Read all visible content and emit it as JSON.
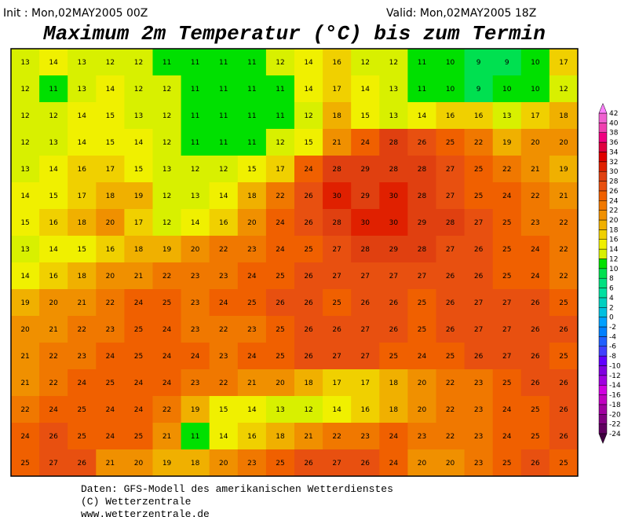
{
  "header": {
    "init": "Init : Mon,02MAY2005 00Z",
    "valid": "Valid: Mon,02MAY2005 18Z",
    "title": "Maximum 2m Temperatur (°C) bis zum Termin"
  },
  "map": {
    "grid": [
      [
        13,
        14,
        13,
        12,
        12,
        11,
        11,
        11,
        11,
        12,
        14,
        16,
        12,
        12,
        11,
        10,
        9,
        9,
        10,
        17
      ],
      [
        12,
        11,
        13,
        14,
        12,
        12,
        11,
        11,
        11,
        11,
        14,
        17,
        14,
        13,
        11,
        10,
        9,
        10,
        10,
        12
      ],
      [
        12,
        12,
        14,
        15,
        13,
        12,
        11,
        11,
        11,
        11,
        12,
        18,
        15,
        13,
        14,
        16,
        16,
        13,
        17,
        18
      ],
      [
        12,
        13,
        14,
        15,
        14,
        12,
        11,
        11,
        11,
        12,
        15,
        21,
        24,
        28,
        26,
        25,
        22,
        19,
        20,
        20
      ],
      [
        13,
        14,
        16,
        17,
        15,
        13,
        12,
        12,
        15,
        17,
        24,
        28,
        29,
        28,
        28,
        27,
        25,
        22,
        21,
        19
      ],
      [
        14,
        15,
        17,
        18,
        19,
        12,
        13,
        14,
        18,
        22,
        26,
        30,
        29,
        30,
        28,
        27,
        25,
        24,
        22,
        21
      ],
      [
        15,
        16,
        18,
        20,
        17,
        12,
        14,
        16,
        20,
        24,
        26,
        28,
        30,
        30,
        29,
        28,
        27,
        25,
        23,
        22
      ],
      [
        13,
        14,
        15,
        16,
        18,
        19,
        20,
        22,
        23,
        24,
        25,
        27,
        28,
        29,
        28,
        27,
        26,
        25,
        24,
        22
      ],
      [
        14,
        16,
        18,
        20,
        21,
        22,
        23,
        23,
        24,
        25,
        26,
        27,
        27,
        27,
        27,
        26,
        26,
        25,
        24,
        22
      ],
      [
        19,
        20,
        21,
        22,
        24,
        25,
        23,
        24,
        25,
        26,
        26,
        25,
        26,
        26,
        25,
        26,
        27,
        27,
        26,
        25
      ],
      [
        20,
        21,
        22,
        23,
        25,
        24,
        23,
        22,
        23,
        25,
        26,
        26,
        27,
        26,
        25,
        26,
        27,
        27,
        26,
        26
      ],
      [
        21,
        22,
        23,
        24,
        25,
        24,
        24,
        23,
        24,
        25,
        26,
        27,
        27,
        25,
        24,
        25,
        26,
        27,
        26,
        25
      ],
      [
        21,
        22,
        24,
        25,
        24,
        24,
        23,
        22,
        21,
        20,
        18,
        17,
        17,
        18,
        20,
        22,
        23,
        25,
        26,
        26
      ],
      [
        22,
        24,
        25,
        24,
        24,
        22,
        19,
        15,
        14,
        13,
        12,
        14,
        16,
        18,
        20,
        22,
        23,
        24,
        25,
        26
      ],
      [
        24,
        26,
        25,
        24,
        25,
        21,
        11,
        14,
        16,
        18,
        21,
        22,
        23,
        24,
        23,
        22,
        23,
        24,
        25,
        26
      ],
      [
        25,
        27,
        26,
        21,
        20,
        19,
        18,
        20,
        23,
        25,
        26,
        27,
        26,
        24,
        20,
        20,
        23,
        25,
        26,
        25
      ]
    ]
  },
  "colorbar": {
    "labels": [
      -24,
      -22,
      -20,
      -18,
      -16,
      -14,
      -12,
      -10,
      -8,
      -6,
      -4,
      -2,
      0,
      2,
      4,
      6,
      8,
      10,
      12,
      14,
      16,
      18,
      20,
      22,
      24,
      26,
      28,
      30,
      32,
      34,
      36,
      38,
      40,
      42
    ],
    "colors": [
      "#600060",
      "#800080",
      "#a000a0",
      "#c000c0",
      "#d000e0",
      "#a000e0",
      "#8000e0",
      "#6000ff",
      "#4040ff",
      "#2060ff",
      "#0080ff",
      "#00a0ff",
      "#00c0e0",
      "#00d0c0",
      "#00e0a0",
      "#00e080",
      "#00e050",
      "#00e000",
      "#d8f000",
      "#f0f000",
      "#f0d000",
      "#f0b000",
      "#f09000",
      "#f07800",
      "#f06000",
      "#e85010",
      "#e04010",
      "#e02000",
      "#e00000",
      "#e00040",
      "#f00080",
      "#f040b0",
      "#f060d0",
      "#ff80ff"
    ],
    "under_color": "#400040"
  },
  "footer": {
    "lines": [
      "Daten: GFS-Modell des amerikanischen Wetterdienstes",
      "(C) Wetterzentrale",
      "www.wetterzentrale.de"
    ]
  }
}
